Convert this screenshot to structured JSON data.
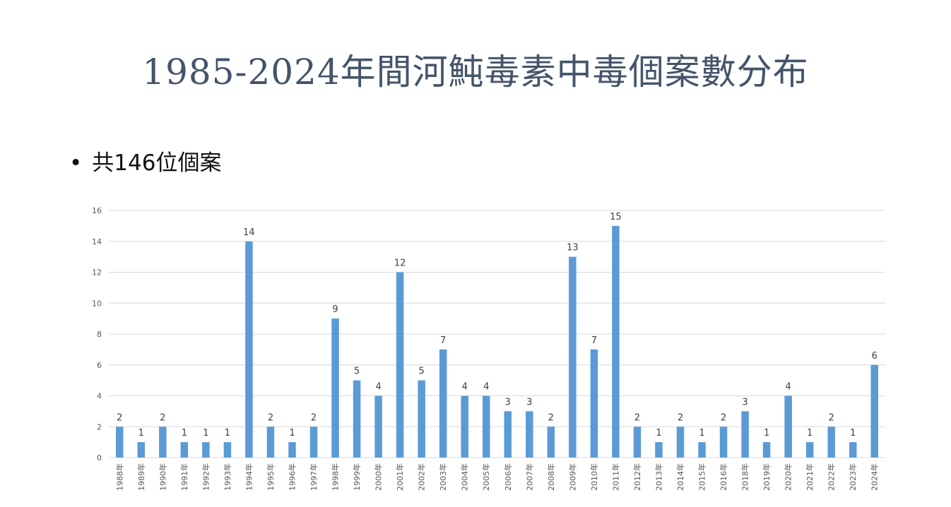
{
  "slide": {
    "title": "1985-2024年間河魨毒素中毒個案數分布",
    "bullet": "共146位個案"
  },
  "colors": {
    "bar": "#5b9bd5",
    "grid": "#d9d9d9",
    "axis": "#d9d9d9",
    "title": "#44546a"
  },
  "chart_data": {
    "type": "bar",
    "categories": [
      "1988年",
      "1989年",
      "1990年",
      "1991年",
      "1992年",
      "1993年",
      "1994年",
      "1995年",
      "1996年",
      "1997年",
      "1998年",
      "1999年",
      "2000年",
      "2001年",
      "2002年",
      "2003年",
      "2004年",
      "2005年",
      "2006年",
      "2007年",
      "2008年",
      "2009年",
      "2010年",
      "2011年",
      "2012年",
      "2013年",
      "2014年",
      "2015年",
      "2016年",
      "2018年",
      "2019年",
      "2020年",
      "2021年",
      "2022年",
      "2023年",
      "2024年"
    ],
    "values": [
      2,
      1,
      2,
      1,
      1,
      1,
      14,
      2,
      1,
      2,
      9,
      5,
      4,
      12,
      5,
      7,
      4,
      4,
      3,
      3,
      2,
      13,
      7,
      15,
      2,
      1,
      2,
      1,
      2,
      3,
      1,
      4,
      1,
      2,
      1,
      6
    ],
    "yticks": [
      0,
      2,
      4,
      6,
      8,
      10,
      12,
      14,
      16
    ],
    "ylim": [
      0,
      16
    ],
    "grid": true,
    "data_labels": true,
    "legend": "none",
    "xlabel": "",
    "ylabel": ""
  }
}
